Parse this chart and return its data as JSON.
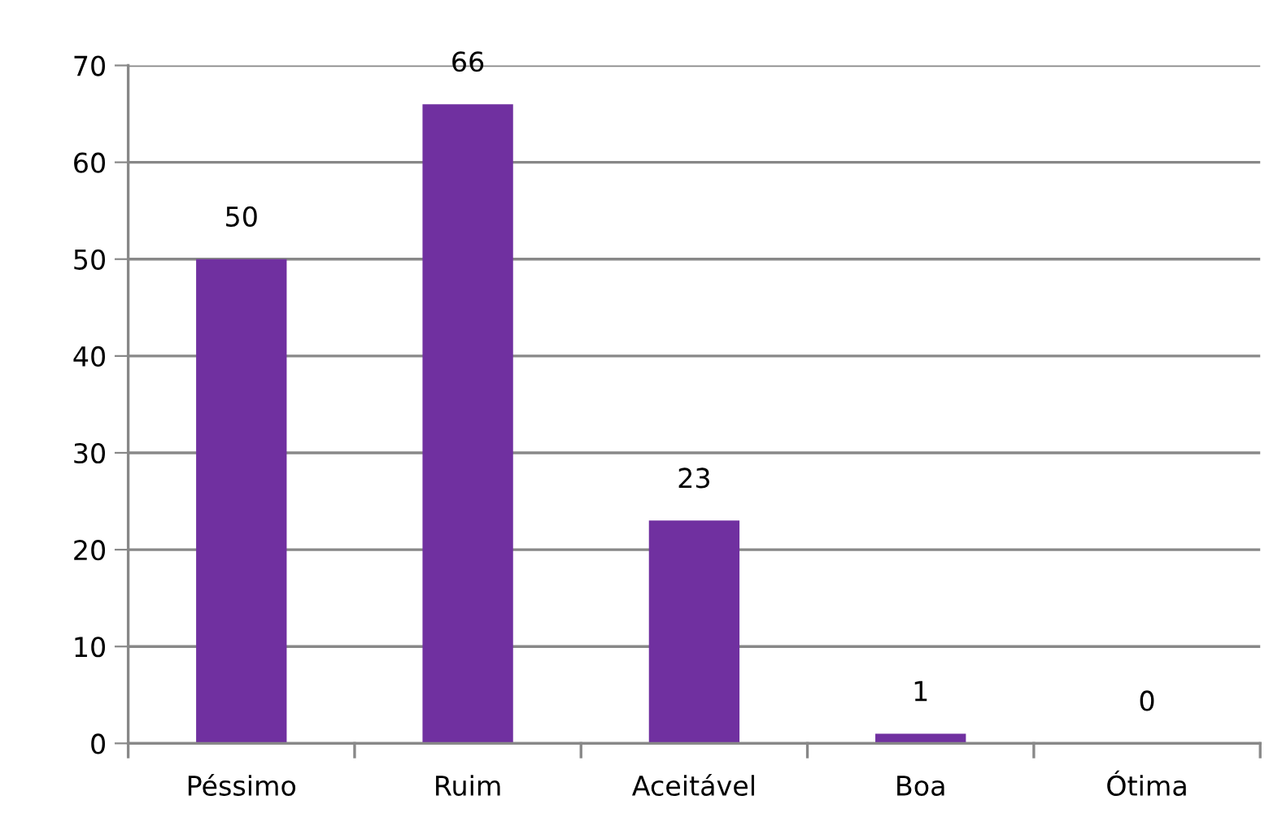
{
  "chart_data": {
    "type": "bar",
    "categories": [
      "Péssimo",
      "Ruim",
      "Aceitável",
      "Boa",
      "Ótima"
    ],
    "values": [
      50,
      66,
      23,
      1,
      0
    ],
    "color": "#7030a0",
    "ylim": [
      0,
      70
    ],
    "yticks": [
      0,
      10,
      20,
      30,
      40,
      50,
      60,
      70
    ],
    "grid": "y",
    "data_labels": true,
    "legend": false
  }
}
